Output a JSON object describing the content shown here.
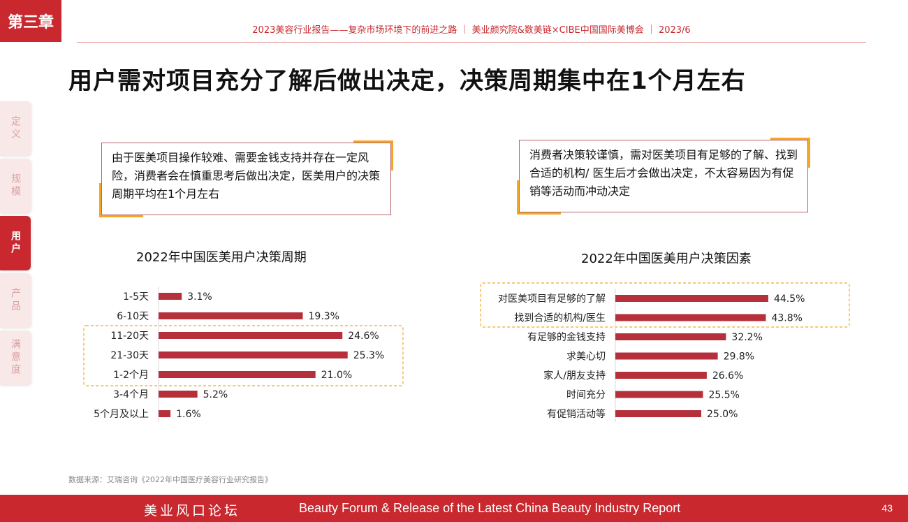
{
  "header": {
    "chapter": "第三章",
    "report_line": "2023美容行业报告——复杂市场环境下的前进之路 ｜ 美业颜究院&数美链×CIBE中国国际美博会 ｜ 2023/6"
  },
  "title": "用户需对项目充分了解后做出决定，决策周期集中在1个月左右",
  "side_nav": [
    {
      "label": "定义",
      "active": false
    },
    {
      "label": "规模",
      "active": false
    },
    {
      "label": "用户",
      "active": true
    },
    {
      "label": "产品",
      "active": false
    },
    {
      "label": "满意度",
      "active": false
    }
  ],
  "callouts": {
    "left": "由于医美项目操作较难、需要金钱支持并存在一定风险，消费者会在慎重思考后做出决定，医美用户的决策周期平均在1个月左右",
    "right": "消费者决策较谨慎，需对医美项目有足够的了解、找到合适的机构/ 医生后才会做出决定，不太容易因为有促销等活动而冲动决定"
  },
  "colors": {
    "accent": "#c8282e",
    "bar": "#b5303a",
    "highlight": "#f5a623"
  },
  "chart_data": [
    {
      "type": "bar",
      "orientation": "horizontal",
      "title": "2022年中国医美用户决策周期",
      "categories": [
        "1-5天",
        "6-10天",
        "11-20天",
        "21-30天",
        "1-2个月",
        "3-4个月",
        "5个月及以上"
      ],
      "values": [
        3.1,
        19.3,
        24.6,
        25.3,
        21.0,
        5.2,
        1.6
      ],
      "value_labels": [
        "3.1%",
        "19.3%",
        "24.6%",
        "25.3%",
        "21.0%",
        "5.2%",
        "1.6%"
      ],
      "unit": "%",
      "highlighted": [
        "11-20天",
        "21-30天",
        "1-2个月"
      ],
      "xlim": [
        0,
        60
      ]
    },
    {
      "type": "bar",
      "orientation": "horizontal",
      "title": "2022年中国医美用户决策因素",
      "categories": [
        "对医美项目有足够的了解",
        "找到合适的机构/医生",
        "有足够的金钱支持",
        "求美心切",
        "家人/朋友支持",
        "时间充分",
        "有促销活动等"
      ],
      "values": [
        44.5,
        43.8,
        32.2,
        29.8,
        26.6,
        25.5,
        25.0
      ],
      "value_labels": [
        "44.5%",
        "43.8%",
        "32.2%",
        "29.8%",
        "26.6%",
        "25.5%",
        "25.0%"
      ],
      "unit": "%",
      "highlighted": [
        "对医美项目有足够的了解",
        "找到合适的机构/医生"
      ],
      "xlim": [
        0,
        100
      ]
    }
  ],
  "source": "数据来源：艾瑞咨询《2022年中国医疗美容行业研究报告》",
  "footer": {
    "cn": "美业风口论坛",
    "en": "Beauty Forum & Release of the Latest China Beauty Industry Report",
    "page": "43"
  }
}
